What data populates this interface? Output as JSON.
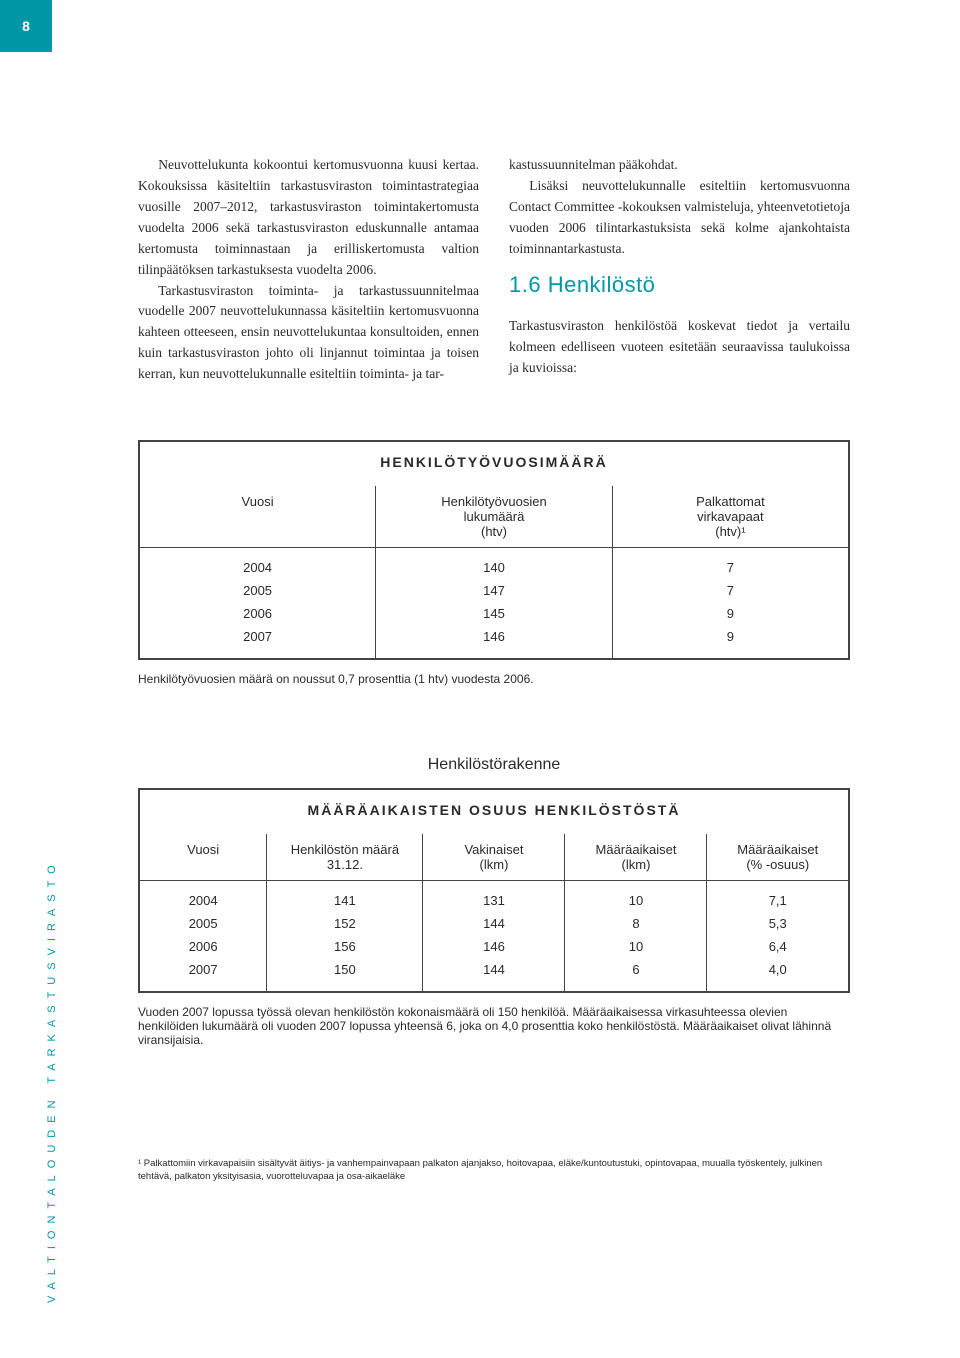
{
  "page_number": "8",
  "sidebar_label": "VALTIONTALOUDEN TARKASTUSVIRASTO",
  "body": {
    "left_p1": "Neuvottelukunta kokoontui kertomusvuonna kuusi kertaa. Kokouksissa käsiteltiin tarkastusviraston toimintastrategiaa vuosille 2007–2012, tarkastusviraston toimintakertomusta vuodelta 2006 sekä tarkastusviraston eduskunnalle antamaa kertomusta toiminnastaan ja erilliskertomusta valtion tilinpäätöksen tarkastuksesta vuodelta 2006.",
    "left_p2": "Tarkastusviraston toiminta- ja tarkastussuunnitelmaa vuodelle 2007 neuvottelukunnassa käsiteltiin kertomusvuonna kahteen otteeseen, ensin neuvottelukuntaa konsultoiden, ennen kuin tarkastusviraston johto oli linjannut toimintaa ja toisen kerran, kun neuvottelukunnalle esiteltiin toiminta- ja tar-",
    "right_p1": "kastussuunnitelman pääkohdat.",
    "right_p2": "Lisäksi neuvottelukunnalle esiteltiin kertomusvuonna Contact Committee -kokouksen valmisteluja, yhteenvetotietoja vuoden 2006 tilintarkastuksista sekä kolme ajankohtaista toiminnantarkastusta.",
    "section_heading": "1.6  Henkilöstö",
    "right_p3": "Tarkastusviraston henkilöstöä koskevat tiedot ja vertailu kolmeen edelliseen vuoteen esitetään seuraavissa taulukoissa ja kuvioissa:"
  },
  "table1": {
    "title": "HENKILÖTYÖVUOSIMÄÄRÄ",
    "headers": [
      "Vuosi",
      "Henkilötyövuosien\nlukumäärä\n(htv)",
      "Palkattomat\nvirkavapaat\n(htv)¹"
    ],
    "rows": [
      [
        "2004",
        "140",
        "7"
      ],
      [
        "2005",
        "147",
        "7"
      ],
      [
        "2006",
        "145",
        "9"
      ],
      [
        "2007",
        "146",
        "9"
      ]
    ],
    "note": "Henkilötyövuosien määrä on noussut 0,7 prosenttia (1 htv) vuodesta 2006."
  },
  "table2": {
    "subheading": "Henkilöstörakenne",
    "title": "MÄÄRÄAIKAISTEN OSUUS HENKILÖSTÖSTÄ",
    "headers": [
      "Vuosi",
      "Henkilöstön määrä\n31.12.",
      "Vakinaiset\n(lkm)",
      "Määräaikaiset\n(lkm)",
      "Määräaikaiset\n(% -osuus)"
    ],
    "rows": [
      [
        "2004",
        "141",
        "131",
        "10",
        "7,1"
      ],
      [
        "2005",
        "152",
        "144",
        "8",
        "5,3"
      ],
      [
        "2006",
        "156",
        "146",
        "10",
        "6,4"
      ],
      [
        "2007",
        "150",
        "144",
        "6",
        "4,0"
      ]
    ],
    "note": "Vuoden 2007 lopussa työssä olevan henkilöstön kokonaismäärä oli 150 henkilöä. Määräaikaisessa virkasuhteessa olevien henkilöiden lukumäärä oli vuoden 2007 lopussa yhteensä 6, joka on 4,0 prosenttia koko henkilöstöstä. Määräaikaiset olivat lähinnä viransijaisia."
  },
  "footnote": "¹ Palkattomiin virkavapaisiin sisältyvät äitiys- ja vanhempainvapaan palkaton ajanjakso, hoitovapaa, eläke/kuntoutustuki, opintovapaa, muualla työskentely, julkinen tehtävä, palkaton yksityisasia, vuorotteluvapaa ja osa-aikaeläke"
}
